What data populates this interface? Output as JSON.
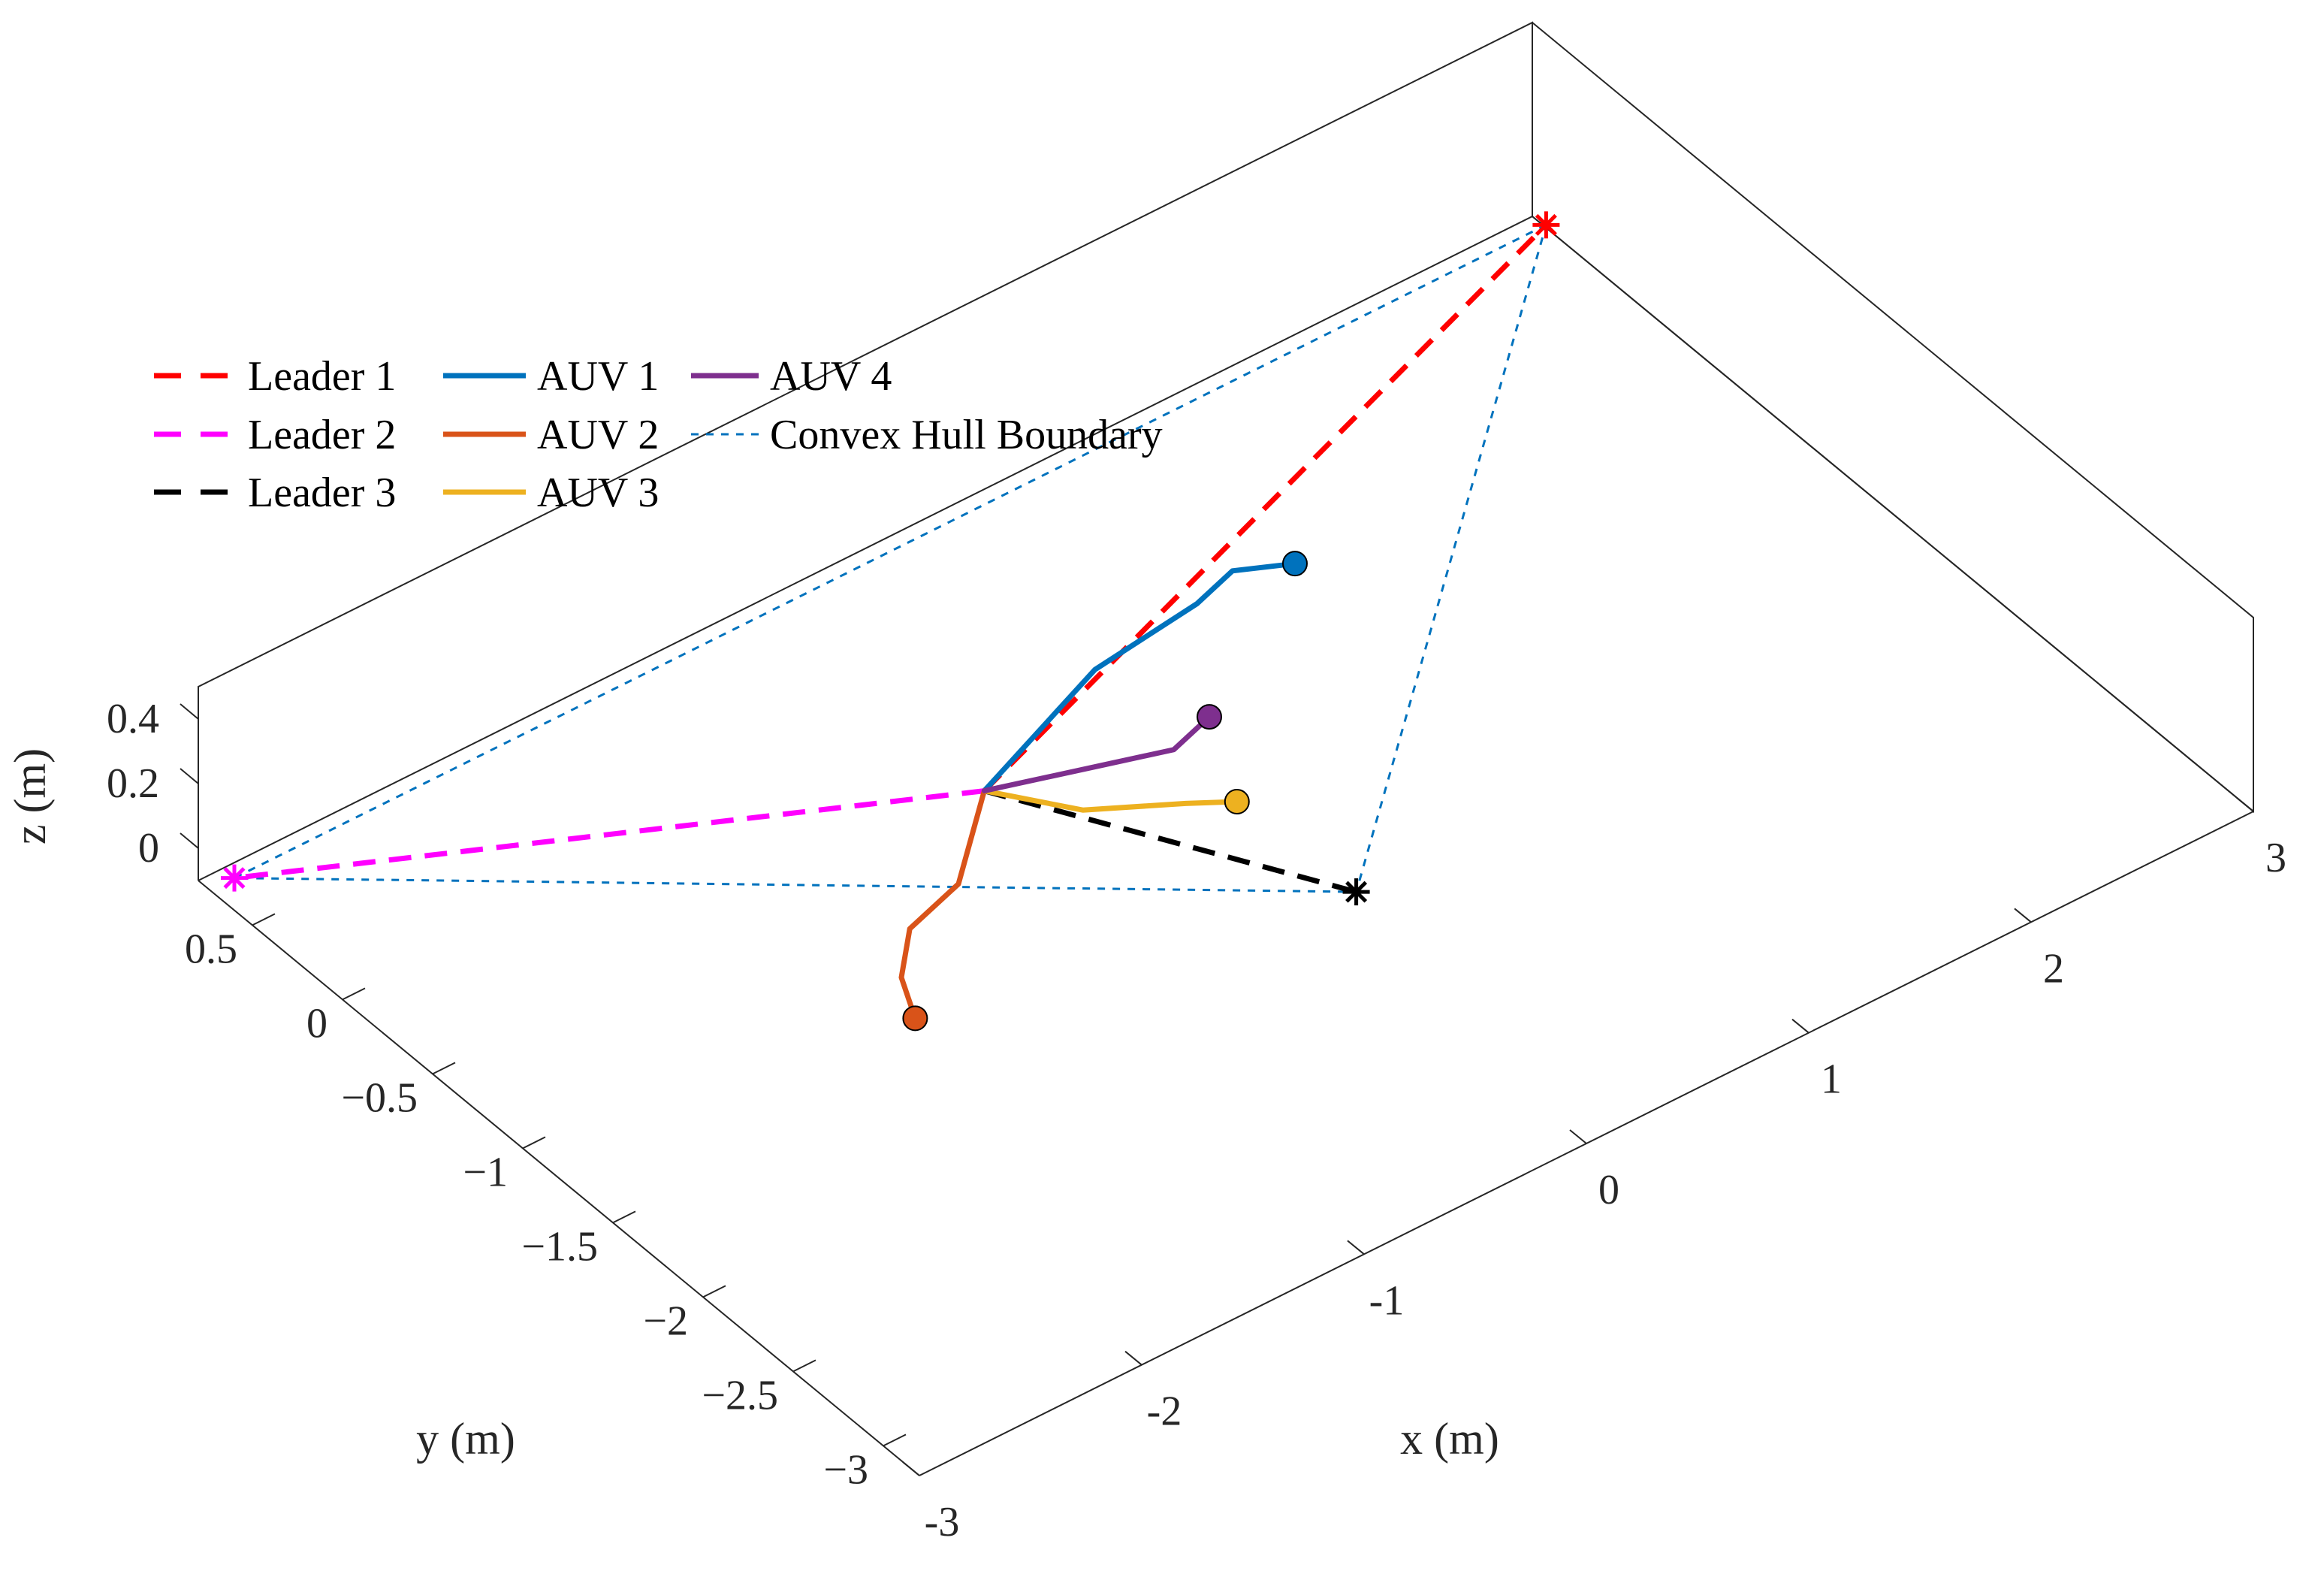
{
  "chart_data": {
    "type": "line3d",
    "title": "",
    "xlabel": "x (m)",
    "ylabel": "y (m)",
    "zlabel": "z (m)",
    "xlim": [
      -3,
      3
    ],
    "ylim": [
      -3.2,
      0.8
    ],
    "zlim": [
      -0.1,
      0.5
    ],
    "x_ticks": [
      -3,
      -2,
      -1,
      0,
      1,
      2,
      3
    ],
    "x_tick_labels": [
      "-3",
      "-2",
      "-1",
      "0",
      "1",
      "2",
      "3"
    ],
    "y_ticks": [
      0.5,
      0,
      -0.5,
      -1,
      -1.5,
      -2,
      -2.5,
      -3
    ],
    "y_tick_labels": [
      "0.5",
      "0",
      "−0.5",
      "−1",
      "−1.5",
      "−2",
      "−2.5",
      "−3"
    ],
    "z_ticks": [
      0,
      0.2,
      0.4
    ],
    "z_tick_labels": [
      "0",
      "0.2",
      "0.4"
    ],
    "grid": false,
    "legend_position": "top-left",
    "series": [
      {
        "name": "Leader 1",
        "style": "dashed",
        "color": "#ff0000",
        "points": [
          [
            -0.6,
            -0.6,
            0
          ],
          [
            2.9,
            0.6,
            0
          ]
        ],
        "end_marker": "asterisk"
      },
      {
        "name": "Leader 2",
        "style": "dashed",
        "color": "#ff00ff",
        "points": [
          [
            -0.6,
            -0.6,
            0
          ],
          [
            -3.0,
            0.6,
            0
          ]
        ],
        "end_marker": "asterisk"
      },
      {
        "name": "Leader 3",
        "style": "dashed",
        "color": "#000000",
        "points": [
          [
            -0.6,
            -0.6,
            0
          ],
          [
            0.1,
            -1.8,
            0
          ]
        ],
        "end_marker": "asterisk"
      },
      {
        "name": "AUV 1",
        "style": "solid",
        "color": "#0072bd",
        "points": [
          [
            -0.6,
            -0.6,
            0
          ],
          [
            0.1,
            -0.35,
            0.02
          ],
          [
            0.6,
            -0.3,
            0.03
          ],
          [
            0.8,
            -0.25,
            0.04
          ],
          [
            1.0,
            -0.35,
            0.04
          ]
        ],
        "end_marker": "circle"
      },
      {
        "name": "AUV 2",
        "style": "solid",
        "color": "#d95319",
        "points": [
          [
            -0.6,
            -0.6,
            0
          ],
          [
            -1.0,
            -0.95,
            0.01
          ],
          [
            -1.3,
            -1.05,
            0.02
          ],
          [
            -1.5,
            -1.25,
            0.03
          ],
          [
            -1.6,
            -1.45,
            0.03
          ]
        ],
        "end_marker": "circle"
      },
      {
        "name": "AUV 3",
        "style": "solid",
        "color": "#edb120",
        "points": [
          [
            -0.6,
            -0.6,
            0
          ],
          [
            -0.4,
            -0.9,
            0.01
          ],
          [
            -0.1,
            -1.1,
            0.02
          ],
          [
            0.05,
            -1.2,
            0.02
          ]
        ],
        "end_marker": "circle"
      },
      {
        "name": "AUV 4",
        "style": "solid",
        "color": "#7e2f8e",
        "points": [
          [
            -0.6,
            -0.6,
            0
          ],
          [
            -0.2,
            -0.75,
            0.01
          ],
          [
            0.05,
            -0.85,
            0.02
          ],
          [
            0.25,
            -0.8,
            0.03
          ]
        ],
        "end_marker": "circle"
      },
      {
        "name": "Convex Hull Boundary",
        "style": "dotted",
        "color": "#0072bd",
        "points": [
          [
            2.9,
            0.6,
            0
          ],
          [
            -3.0,
            0.6,
            0
          ],
          [
            0.1,
            -1.8,
            0
          ],
          [
            2.9,
            0.6,
            0
          ]
        ]
      }
    ]
  }
}
